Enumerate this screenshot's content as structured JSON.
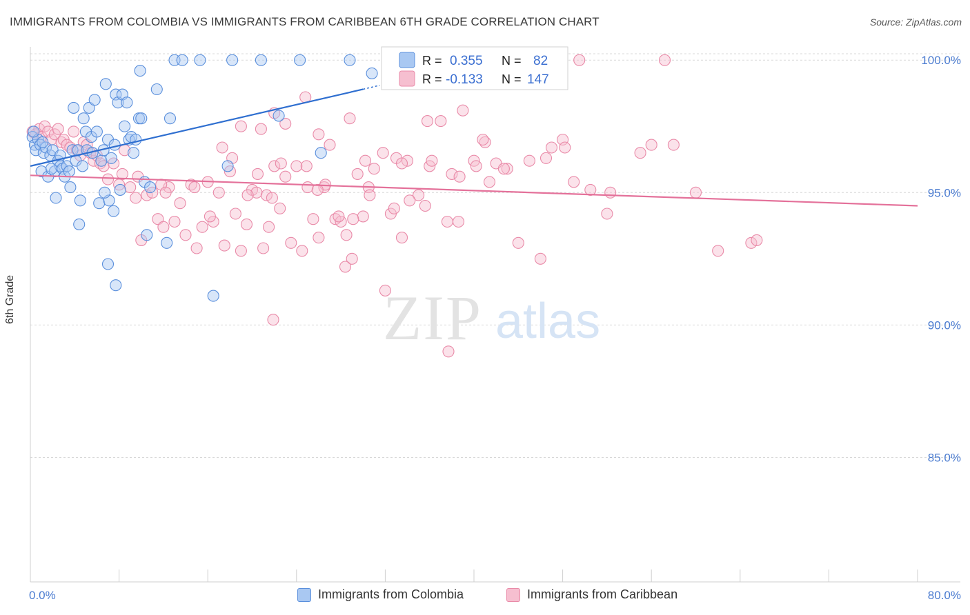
{
  "title": "IMMIGRANTS FROM COLOMBIA VS IMMIGRANTS FROM CARIBBEAN 6TH GRADE CORRELATION CHART",
  "source": "Source: ZipAtlas.com",
  "watermark": {
    "zip": "ZIP",
    "atlas": "atlas"
  },
  "colors": {
    "colombia_fill": "#a9c8f2",
    "colombia_stroke": "#5a8fdc",
    "colombia_line": "#2f6fd0",
    "caribbean_fill": "#f6bfd0",
    "caribbean_stroke": "#e98aa8",
    "caribbean_line": "#e4719a",
    "axis_label": "#4a7bd0",
    "grid": "#d8d8d8"
  },
  "legend": {
    "r_label": "R =",
    "n_label": "N =",
    "entries": [
      {
        "r": "0.355",
        "n": "82"
      },
      {
        "r": "-0.133",
        "n": "147"
      }
    ]
  },
  "bottom_legend": [
    "Immigrants from Colombia",
    "Immigrants from Caribbean"
  ],
  "chart_data": {
    "type": "scatter",
    "title": "IMMIGRANTS FROM COLOMBIA VS IMMIGRANTS FROM CARIBBEAN 6TH GRADE CORRELATION CHART",
    "xlabel": "",
    "ylabel": "6th Grade",
    "xlim": [
      0,
      80
    ],
    "ylim": [
      80.3,
      100.5
    ],
    "x_tick_labels": [
      "0.0%",
      "80.0%"
    ],
    "y_ticks": [
      85,
      90,
      95,
      100
    ],
    "y_tick_labels": [
      "85.0%",
      "90.0%",
      "95.0%",
      "100.0%"
    ],
    "grid": true,
    "series": [
      {
        "name": "Immigrants from Colombia",
        "r": 0.355,
        "n": 82,
        "trend": {
          "x": [
            0,
            30
          ],
          "y": [
            96.0,
            98.9
          ]
        },
        "trend_dashed": {
          "x": [
            30,
            31.5
          ],
          "y": [
            98.9,
            99.05
          ]
        },
        "points": [
          [
            0.2,
            97.1
          ],
          [
            0.4,
            96.8
          ],
          [
            0.5,
            96.6
          ],
          [
            0.7,
            97.0
          ],
          [
            0.9,
            96.8
          ],
          [
            1.0,
            95.8
          ],
          [
            1.2,
            96.5
          ],
          [
            1.4,
            96.7
          ],
          [
            1.6,
            95.6
          ],
          [
            1.8,
            96.4
          ],
          [
            2.0,
            96.6
          ],
          [
            2.2,
            95.8
          ],
          [
            2.3,
            94.8
          ],
          [
            2.5,
            96.2
          ],
          [
            2.7,
            96.0
          ],
          [
            2.9,
            95.9
          ],
          [
            3.1,
            95.6
          ],
          [
            3.3,
            96.0
          ],
          [
            3.5,
            95.8
          ],
          [
            3.6,
            95.2
          ],
          [
            3.8,
            96.6
          ],
          [
            3.9,
            98.2
          ],
          [
            4.1,
            96.2
          ],
          [
            4.3,
            96.6
          ],
          [
            4.5,
            94.7
          ],
          [
            4.7,
            96.0
          ],
          [
            4.8,
            97.8
          ],
          [
            5.0,
            97.3
          ],
          [
            5.1,
            96.6
          ],
          [
            5.3,
            98.2
          ],
          [
            5.5,
            97.1
          ],
          [
            5.6,
            96.5
          ],
          [
            5.8,
            98.5
          ],
          [
            6.0,
            97.3
          ],
          [
            6.2,
            94.6
          ],
          [
            6.4,
            96.2
          ],
          [
            6.6,
            96.6
          ],
          [
            6.8,
            99.1
          ],
          [
            7.0,
            97.0
          ],
          [
            7.1,
            94.7
          ],
          [
            7.3,
            96.3
          ],
          [
            7.5,
            94.3
          ],
          [
            7.6,
            96.8
          ],
          [
            7.7,
            98.7
          ],
          [
            7.9,
            98.4
          ],
          [
            8.1,
            95.1
          ],
          [
            8.3,
            98.7
          ],
          [
            8.5,
            97.5
          ],
          [
            8.7,
            98.4
          ],
          [
            8.9,
            97.0
          ],
          [
            9.1,
            97.1
          ],
          [
            9.3,
            96.5
          ],
          [
            9.5,
            97.0
          ],
          [
            9.8,
            97.8
          ],
          [
            10.0,
            97.8
          ],
          [
            10.3,
            95.4
          ],
          [
            10.5,
            93.4
          ],
          [
            10.8,
            95.2
          ],
          [
            11.4,
            98.9
          ],
          [
            12.6,
            97.8
          ],
          [
            13.0,
            100.0
          ],
          [
            13.7,
            100.0
          ],
          [
            15.3,
            100.0
          ],
          [
            18.2,
            100.0
          ],
          [
            20.8,
            100.0
          ],
          [
            24.3,
            100.0
          ],
          [
            28.8,
            100.0
          ],
          [
            30.8,
            99.5
          ],
          [
            9.9,
            99.6
          ],
          [
            7.0,
            92.3
          ],
          [
            7.7,
            91.5
          ],
          [
            16.5,
            91.1
          ],
          [
            4.4,
            93.8
          ],
          [
            1.9,
            95.9
          ],
          [
            2.7,
            96.4
          ],
          [
            6.7,
            95.0
          ],
          [
            12.3,
            93.1
          ],
          [
            17.8,
            96.0
          ],
          [
            22.4,
            97.9
          ],
          [
            26.2,
            96.5
          ],
          [
            0.3,
            97.3
          ],
          [
            1.1,
            96.9
          ]
        ]
      },
      {
        "name": "Immigrants from Caribbean",
        "r": -0.133,
        "n": 147,
        "trend": {
          "x": [
            0,
            80
          ],
          "y": [
            95.65,
            94.5
          ]
        },
        "points": [
          [
            0.2,
            97.3
          ],
          [
            0.5,
            97.2
          ],
          [
            0.8,
            97.4
          ],
          [
            1.0,
            97.1
          ],
          [
            1.3,
            97.5
          ],
          [
            1.6,
            97.3
          ],
          [
            1.9,
            97.0
          ],
          [
            2.2,
            97.2
          ],
          [
            2.5,
            97.4
          ],
          [
            2.8,
            96.9
          ],
          [
            3.0,
            97.0
          ],
          [
            3.3,
            96.8
          ],
          [
            3.6,
            96.7
          ],
          [
            3.9,
            97.3
          ],
          [
            4.2,
            96.6
          ],
          [
            4.5,
            96.4
          ],
          [
            4.8,
            96.9
          ],
          [
            5.1,
            96.8
          ],
          [
            5.4,
            96.5
          ],
          [
            5.7,
            96.2
          ],
          [
            6.0,
            96.4
          ],
          [
            6.3,
            96.1
          ],
          [
            6.6,
            96.0
          ],
          [
            7.0,
            95.5
          ],
          [
            7.5,
            96.1
          ],
          [
            8.0,
            95.3
          ],
          [
            8.5,
            96.6
          ],
          [
            9.0,
            95.2
          ],
          [
            9.5,
            94.8
          ],
          [
            10.0,
            93.2
          ],
          [
            10.5,
            94.9
          ],
          [
            11.0,
            95.0
          ],
          [
            11.5,
            94.0
          ],
          [
            12.0,
            93.7
          ],
          [
            12.5,
            95.2
          ],
          [
            13.0,
            93.9
          ],
          [
            13.5,
            94.6
          ],
          [
            14.0,
            93.4
          ],
          [
            14.5,
            95.3
          ],
          [
            15.0,
            92.9
          ],
          [
            15.5,
            93.7
          ],
          [
            16.0,
            95.4
          ],
          [
            16.5,
            93.9
          ],
          [
            17.0,
            95.0
          ],
          [
            17.5,
            93.0
          ],
          [
            18.0,
            95.8
          ],
          [
            18.5,
            94.2
          ],
          [
            19.0,
            92.8
          ],
          [
            19.5,
            93.8
          ],
          [
            20.0,
            95.1
          ],
          [
            20.5,
            95.7
          ],
          [
            21.0,
            92.9
          ],
          [
            21.5,
            93.7
          ],
          [
            22.0,
            96.0
          ],
          [
            22.5,
            94.4
          ],
          [
            23.0,
            95.6
          ],
          [
            23.5,
            93.1
          ],
          [
            24.0,
            96.0
          ],
          [
            24.5,
            92.8
          ],
          [
            25.0,
            95.2
          ],
          [
            25.5,
            94.0
          ],
          [
            26.0,
            93.3
          ],
          [
            26.5,
            95.2
          ],
          [
            27.0,
            96.8
          ],
          [
            27.5,
            94.0
          ],
          [
            28.0,
            93.9
          ],
          [
            28.5,
            93.4
          ],
          [
            29.0,
            92.5
          ],
          [
            29.5,
            95.7
          ],
          [
            30.0,
            94.1
          ],
          [
            30.5,
            95.2
          ],
          [
            31.0,
            95.9
          ],
          [
            32.0,
            91.3
          ],
          [
            32.5,
            94.2
          ],
          [
            33.0,
            96.3
          ],
          [
            33.5,
            93.3
          ],
          [
            34.0,
            96.2
          ],
          [
            35.0,
            94.9
          ],
          [
            36.0,
            96.0
          ],
          [
            37.0,
            97.7
          ],
          [
            38.0,
            95.7
          ],
          [
            39.0,
            98.1
          ],
          [
            40.0,
            96.2
          ],
          [
            41.0,
            96.9
          ],
          [
            42.0,
            96.1
          ],
          [
            43.0,
            95.9
          ],
          [
            44.0,
            93.1
          ],
          [
            45.0,
            96.2
          ],
          [
            46.0,
            92.5
          ],
          [
            47.0,
            96.7
          ],
          [
            48.0,
            97.0
          ],
          [
            49.0,
            95.4
          ],
          [
            52.0,
            94.2
          ],
          [
            52.3,
            95.0
          ],
          [
            55.0,
            96.5
          ],
          [
            56.0,
            96.8
          ],
          [
            58.0,
            96.8
          ],
          [
            60.0,
            95.0
          ],
          [
            62.0,
            92.8
          ],
          [
            65.0,
            93.1
          ],
          [
            65.5,
            93.2
          ],
          [
            49.5,
            100.0
          ],
          [
            57.2,
            100.0
          ],
          [
            24.8,
            98.6
          ],
          [
            22.0,
            98.0
          ],
          [
            19.0,
            97.5
          ],
          [
            20.8,
            97.4
          ],
          [
            23.0,
            97.6
          ],
          [
            26.0,
            97.2
          ],
          [
            28.8,
            97.8
          ],
          [
            30.2,
            96.2
          ],
          [
            31.8,
            96.5
          ],
          [
            33.5,
            96.1
          ],
          [
            35.8,
            97.7
          ],
          [
            36.2,
            96.2
          ],
          [
            38.7,
            95.6
          ],
          [
            40.8,
            97.0
          ],
          [
            42.7,
            95.9
          ],
          [
            46.5,
            96.3
          ],
          [
            48.2,
            96.7
          ],
          [
            50.5,
            95.1
          ],
          [
            11.8,
            95.3
          ],
          [
            12.2,
            95.0
          ],
          [
            14.8,
            95.2
          ],
          [
            16.2,
            94.1
          ],
          [
            17.3,
            96.7
          ],
          [
            18.2,
            96.3
          ],
          [
            21.3,
            94.9
          ],
          [
            22.6,
            96.1
          ],
          [
            24.9,
            96.0
          ],
          [
            26.6,
            95.3
          ],
          [
            27.8,
            94.1
          ],
          [
            29.1,
            94.0
          ],
          [
            30.6,
            94.9
          ],
          [
            32.8,
            94.4
          ],
          [
            34.2,
            94.7
          ],
          [
            35.6,
            94.5
          ],
          [
            37.6,
            93.9
          ],
          [
            38.6,
            93.9
          ],
          [
            40.2,
            96.0
          ],
          [
            41.4,
            95.4
          ],
          [
            25.9,
            95.1
          ],
          [
            21.8,
            94.8
          ],
          [
            20.4,
            95.0
          ],
          [
            19.6,
            94.9
          ],
          [
            8.3,
            95.7
          ],
          [
            9.7,
            95.6
          ],
          [
            37.7,
            89.0
          ],
          [
            21.9,
            90.2
          ],
          [
            28.4,
            92.2
          ]
        ]
      }
    ]
  }
}
